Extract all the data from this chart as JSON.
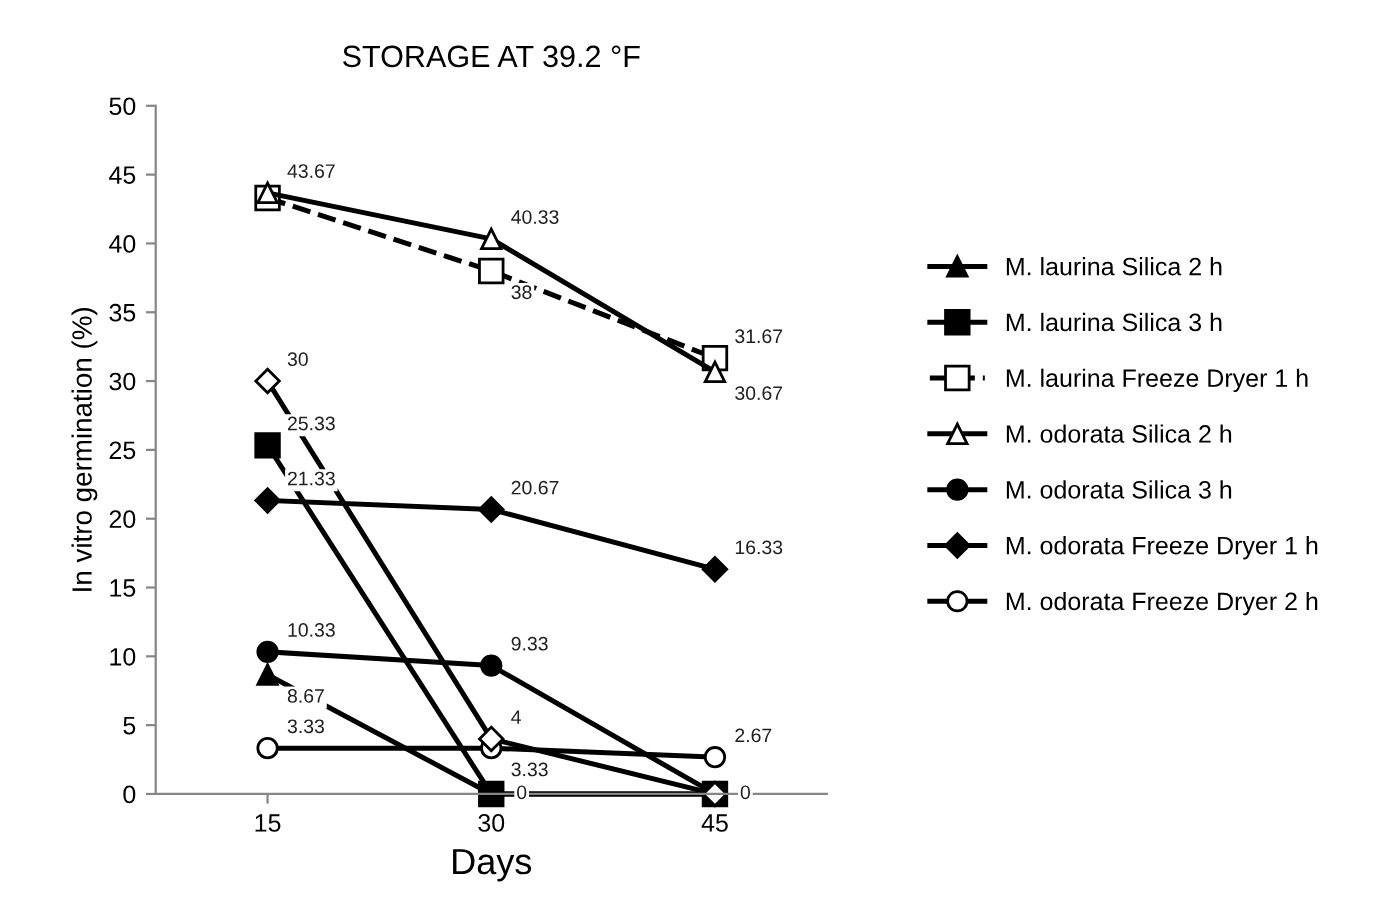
{
  "chart_data": {
    "type": "line",
    "title": "STORAGE AT 39.2 °F",
    "xlabel": "Days",
    "ylabel": "In vitro germination (%)",
    "categories": [
      "15",
      "30",
      "45"
    ],
    "ylim": [
      0,
      50
    ],
    "yticks": [
      0,
      5,
      10,
      15,
      20,
      25,
      30,
      35,
      40,
      45,
      50
    ],
    "grid": false,
    "legend": "right",
    "series": [
      {
        "name": "M. laurina Silica 2 h",
        "color": "#000000",
        "marker": "triangle",
        "line_style": "solid",
        "values": [
          8.67,
          0,
          0
        ],
        "value_labels": [
          "8.67",
          null,
          null
        ]
      },
      {
        "name": "M. laurina Silica 3 h",
        "color": "#000000",
        "marker": "square",
        "line_style": "solid",
        "values": [
          25.33,
          0,
          0
        ],
        "value_labels": [
          "25.33",
          "0",
          "0"
        ]
      },
      {
        "name": "M. laurina Freeze Dryer 1 h",
        "color": "#000000",
        "marker": "square-open",
        "line_style": "dashed",
        "values": [
          43.3,
          38,
          31.67
        ],
        "value_labels": [
          null,
          "38",
          "31.67"
        ]
      },
      {
        "name": "M. odorata Silica 2 h",
        "color": "#000000",
        "marker": "triangle-open",
        "line_style": "solid",
        "values": [
          43.67,
          40.33,
          30.67
        ],
        "value_labels": [
          "43.67",
          "40.33",
          "30.67"
        ]
      },
      {
        "name": "M. odorata Silica 3 h",
        "color": "#000000",
        "marker": "circle",
        "line_style": "solid",
        "values": [
          10.33,
          9.33,
          0
        ],
        "value_labels": [
          "10.33",
          "9.33",
          null
        ]
      },
      {
        "name": "M. odorata Freeze Dryer 1 h",
        "color": "#000000",
        "marker": "diamond",
        "line_style": "solid",
        "values": [
          21.33,
          20.67,
          16.33
        ],
        "value_labels": [
          "21.33",
          "20.67",
          "16.33"
        ]
      },
      {
        "name": "M. odorata Freeze Dryer 2 h",
        "color": "#000000",
        "marker": "circle-open",
        "line_style": "solid",
        "values": [
          3.33,
          3.33,
          2.67
        ],
        "value_labels": [
          "3.33",
          "3.33",
          "2.67"
        ]
      },
      {
        "color": "#000000",
        "marker": "diamond-open",
        "line_style": "solid",
        "values": [
          30,
          4,
          0
        ],
        "value_labels": [
          "30",
          "4",
          null
        ]
      }
    ]
  }
}
